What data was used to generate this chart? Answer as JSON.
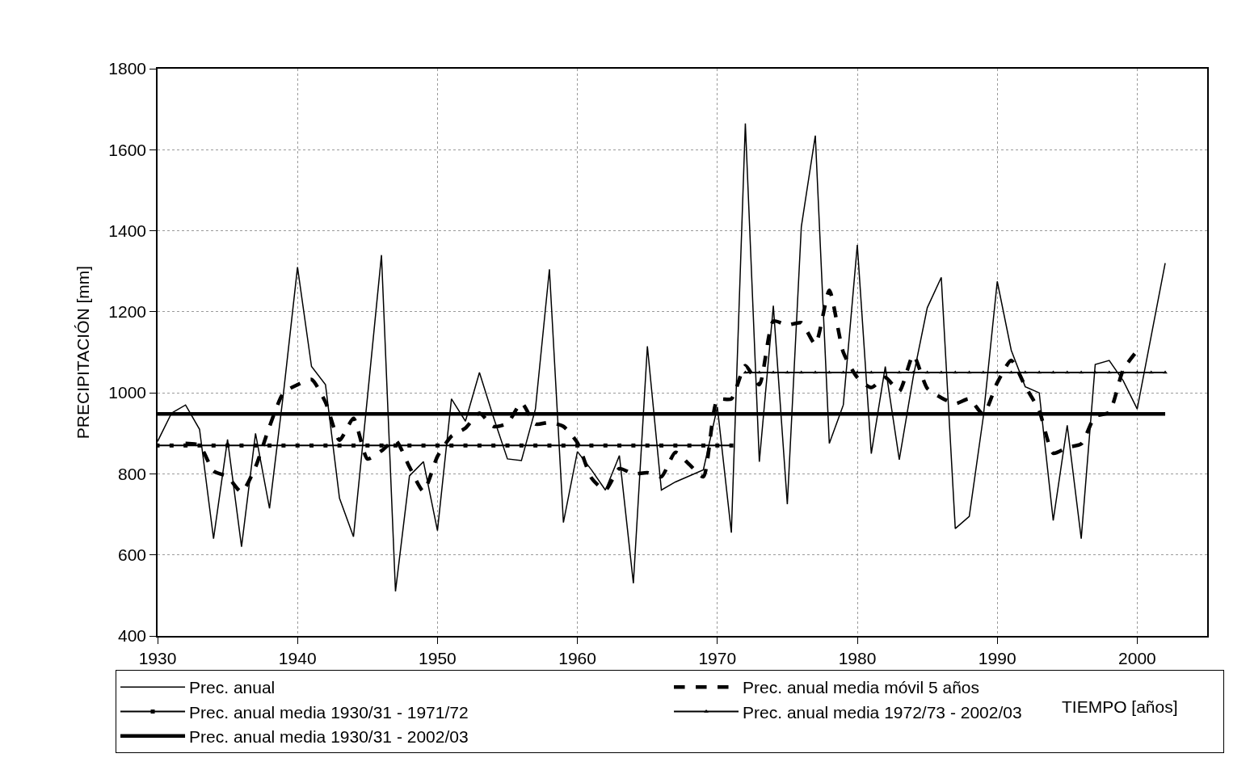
{
  "chart_data": {
    "type": "line",
    "xlabel": "TIEMPO [años]",
    "ylabel": "PRECIPITACIÓN [mm]",
    "xlim": [
      1930,
      2005
    ],
    "xticks": [
      1930,
      1940,
      1950,
      1960,
      1970,
      1980,
      1990,
      2000
    ],
    "ylim": [
      400,
      1800
    ],
    "yticks": [
      400,
      600,
      800,
      1000,
      1200,
      1400,
      1600,
      1800
    ],
    "grid": true,
    "legend": "bottom",
    "series": [
      {
        "name": "Prec. anual",
        "color": "#000000",
        "line_style": "solid",
        "marker": "none",
        "x": [
          1930,
          1931,
          1932,
          1933,
          1934,
          1935,
          1936,
          1937,
          1938,
          1939,
          1940,
          1941,
          1942,
          1943,
          1944,
          1945,
          1946,
          1947,
          1948,
          1949,
          1950,
          1951,
          1952,
          1953,
          1954,
          1955,
          1956,
          1957,
          1958,
          1959,
          1960,
          1961,
          1962,
          1963,
          1964,
          1965,
          1966,
          1967,
          1968,
          1969,
          1970,
          1971,
          1972,
          1973,
          1974,
          1975,
          1976,
          1977,
          1978,
          1979,
          1980,
          1981,
          1982,
          1983,
          1984,
          1985,
          1986,
          1987,
          1988,
          1989,
          1990,
          1991,
          1992,
          1993,
          1994,
          1995,
          1996,
          1997,
          1998,
          1999,
          2000,
          2001,
          2002
        ],
        "values": [
          880,
          950,
          970,
          910,
          640,
          885,
          620,
          900,
          715,
          1000,
          1310,
          1065,
          1020,
          740,
          645,
          990,
          1340,
          510,
          795,
          830,
          660,
          985,
          930,
          1050,
          940,
          837,
          833,
          960,
          1305,
          680,
          855,
          810,
          760,
          845,
          530,
          1115,
          760,
          780,
          795,
          810,
          965,
          655,
          1665,
          830,
          1215,
          725,
          1410,
          1635,
          875,
          970,
          1365,
          850,
          1065,
          835,
          1040,
          1210,
          1285,
          665,
          695,
          940,
          1275,
          1105,
          1015,
          1000,
          685,
          920,
          640,
          1070,
          1080,
          1030,
          960,
          1140,
          1320
        ]
      },
      {
        "name": "Prec. anual media móvil 5 años",
        "color": "#000000",
        "line_style": "dashed",
        "marker": "none",
        "x": [
          1932,
          1933,
          1934,
          1935,
          1936,
          1937,
          1938,
          1939,
          1940,
          1941,
          1942,
          1943,
          1944,
          1945,
          1946,
          1947,
          1948,
          1949,
          1950,
          1951,
          1952,
          1953,
          1954,
          1955,
          1956,
          1957,
          1958,
          1959,
          1960,
          1961,
          1962,
          1963,
          1964,
          1965,
          1966,
          1967,
          1968,
          1969,
          1970,
          1971,
          1972,
          1973,
          1974,
          1975,
          1976,
          1977,
          1978,
          1979,
          1980,
          1981,
          1982,
          1983,
          1984,
          1985,
          1986,
          1987,
          1988,
          1989,
          1990,
          1991,
          1992,
          1993,
          1994,
          1995,
          1996,
          1997,
          1998,
          1999,
          2000
        ],
        "values": [
          875,
          870,
          807,
          793,
          755,
          817,
          917,
          1000,
          1020,
          1033,
          977,
          883,
          937,
          837,
          857,
          883,
          817,
          757,
          843,
          893,
          913,
          950,
          917,
          925,
          975,
          923,
          927,
          917,
          877,
          790,
          760,
          813,
          800,
          803,
          793,
          853,
          823,
          793,
          983,
          985,
          1067,
          1020,
          1177,
          1167,
          1173,
          1120,
          1253,
          1100,
          1038,
          1013,
          1038,
          1004,
          1093,
          1011,
          988,
          973,
          985,
          947,
          1025,
          1080,
          1016,
          956,
          851,
          865,
          874,
          942,
          952,
          1057,
          1104
        ]
      },
      {
        "name": "Prec. anual media 1930/31 - 1971/72",
        "color": "#000000",
        "line_style": "solid",
        "marker": "square",
        "x": [
          1930,
          1931,
          1932,
          1933,
          1934,
          1935,
          1936,
          1937,
          1938,
          1939,
          1940,
          1941,
          1942,
          1943,
          1944,
          1945,
          1946,
          1947,
          1948,
          1949,
          1950,
          1951,
          1952,
          1953,
          1954,
          1955,
          1956,
          1957,
          1958,
          1959,
          1960,
          1961,
          1962,
          1963,
          1964,
          1965,
          1966,
          1967,
          1968,
          1969,
          1970,
          1971
        ],
        "values": [
          870,
          870,
          870,
          870,
          870,
          870,
          870,
          870,
          870,
          870,
          870,
          870,
          870,
          870,
          870,
          870,
          870,
          870,
          870,
          870,
          870,
          870,
          870,
          870,
          870,
          870,
          870,
          870,
          870,
          870,
          870,
          870,
          870,
          870,
          870,
          870,
          870,
          870,
          870,
          870,
          870,
          870
        ]
      },
      {
        "name": "Prec. anual media 1972/73 - 2002/03",
        "color": "#000000",
        "line_style": "solid",
        "marker": "triangle",
        "x": [
          1972,
          1973,
          1974,
          1975,
          1976,
          1977,
          1978,
          1979,
          1980,
          1981,
          1982,
          1983,
          1984,
          1985,
          1986,
          1987,
          1988,
          1989,
          1990,
          1991,
          1992,
          1993,
          1994,
          1995,
          1996,
          1997,
          1998,
          1999,
          2000,
          2001,
          2002
        ],
        "values": [
          1050,
          1050,
          1050,
          1050,
          1050,
          1050,
          1050,
          1050,
          1050,
          1050,
          1050,
          1050,
          1050,
          1050,
          1050,
          1050,
          1050,
          1050,
          1050,
          1050,
          1050,
          1050,
          1050,
          1050,
          1050,
          1050,
          1050,
          1050,
          1050,
          1050,
          1050
        ]
      },
      {
        "name": "Prec. anual media 1930/31 - 2002/03",
        "color": "#000000",
        "line_style": "solid",
        "marker": "none",
        "x": [
          1930,
          2002
        ],
        "values": [
          948,
          948
        ]
      }
    ]
  }
}
